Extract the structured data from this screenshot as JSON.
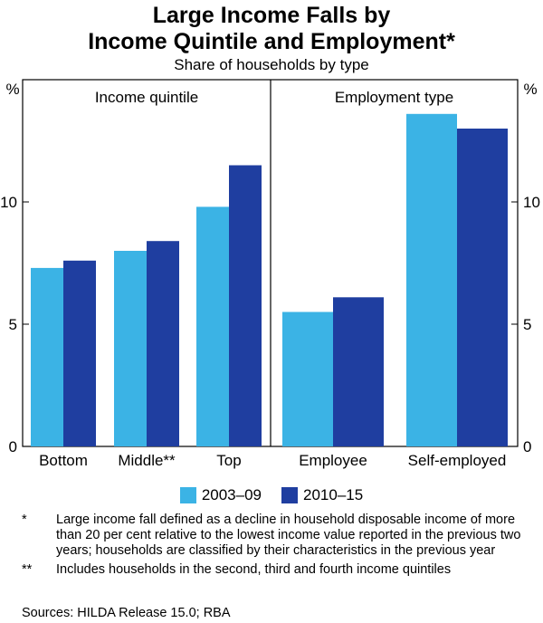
{
  "chart_data": {
    "type": "bar",
    "title": "Large Income Falls by",
    "title_line2": "Income Quintile and Employment*",
    "subtitle": "Share of households by type",
    "y_unit_left": "%",
    "y_unit_right": "%",
    "ylim": [
      0,
      15
    ],
    "yticks": [
      0,
      5,
      10
    ],
    "grid": false,
    "legend_position": "bottom",
    "series_names": [
      "2003–09",
      "2010–15"
    ],
    "series_colors": [
      "#3bb3e5",
      "#1f3ea0"
    ],
    "panels": [
      {
        "label": "Income quintile",
        "categories": [
          "Bottom",
          "Middle**",
          "Top"
        ],
        "series": [
          {
            "name": "2003–09",
            "values": [
              7.3,
              8.0,
              9.8
            ]
          },
          {
            "name": "2010–15",
            "values": [
              7.6,
              8.4,
              11.5
            ]
          }
        ]
      },
      {
        "label": "Employment type",
        "categories": [
          "Employee",
          "Self-employed"
        ],
        "series": [
          {
            "name": "2003–09",
            "values": [
              5.5,
              13.6
            ]
          },
          {
            "name": "2010–15",
            "values": [
              6.1,
              13.0
            ]
          }
        ]
      }
    ]
  },
  "notes": [
    {
      "mark": "*",
      "text": "Large income fall defined as a decline in household disposable income of more than 20 per cent relative to the lowest income value reported in the previous two years; households are classified by their characteristics in the previous year"
    },
    {
      "mark": "**",
      "text": "Includes households in the second, third and fourth income quintiles"
    }
  ],
  "sources": "Sources: HILDA Release 15.0; RBA"
}
